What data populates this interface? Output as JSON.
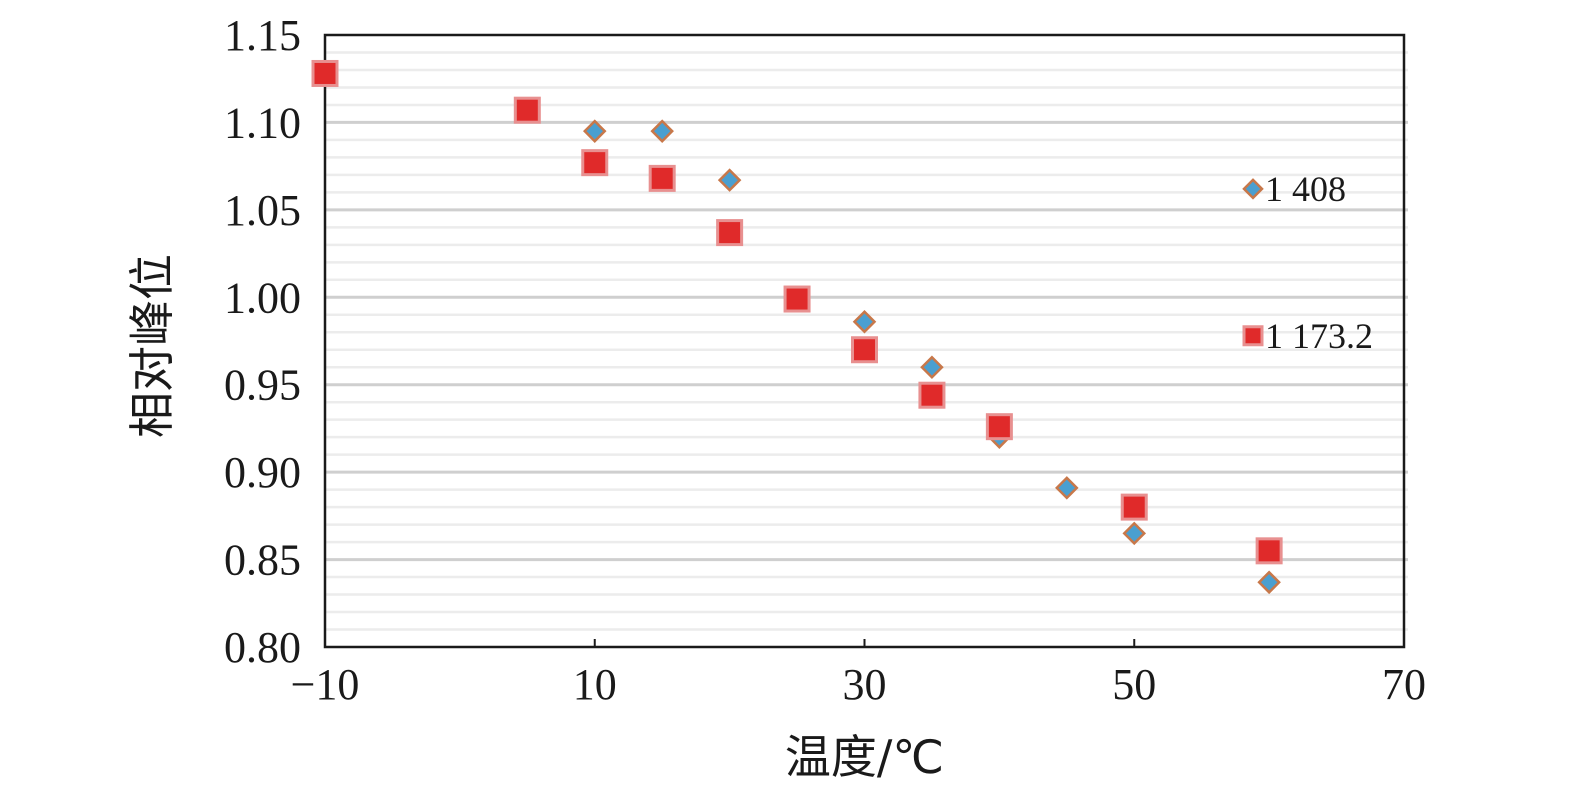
{
  "chart_data": {
    "type": "scatter",
    "title": "",
    "xlabel": "温度/℃",
    "ylabel": "相对峰位",
    "xlim": [
      -10,
      70
    ],
    "ylim": [
      0.8,
      1.15
    ],
    "x_ticks": [
      -10,
      10,
      30,
      50,
      70
    ],
    "x_tick_labels": [
      "−10",
      "10",
      "30",
      "50",
      "70"
    ],
    "y_ticks": [
      0.8,
      0.85,
      0.9,
      0.95,
      1.0,
      1.05,
      1.1,
      1.15
    ],
    "y_tick_labels": [
      "0.80",
      "0.85",
      "0.90",
      "0.95",
      "1.00",
      "1.05",
      "1.10",
      "1.15"
    ],
    "grid": true,
    "legend_position": "right",
    "series": [
      {
        "name": "1 408",
        "marker": "diamond",
        "color": "#4a9fd0",
        "edge_color": "#c8784a",
        "points": [
          {
            "x": 10,
            "y": 1.095
          },
          {
            "x": 15,
            "y": 1.095
          },
          {
            "x": 20,
            "y": 1.067
          },
          {
            "x": 30,
            "y": 0.986
          },
          {
            "x": 35,
            "y": 0.96
          },
          {
            "x": 40,
            "y": 0.92
          },
          {
            "x": 45,
            "y": 0.891
          },
          {
            "x": 50,
            "y": 0.865
          },
          {
            "x": 60,
            "y": 0.837
          }
        ]
      },
      {
        "name": "1 173.2",
        "marker": "square",
        "color": "#e02a2a",
        "edge_color": "#e89090",
        "points": [
          {
            "x": -10,
            "y": 1.128
          },
          {
            "x": 5,
            "y": 1.107
          },
          {
            "x": 10,
            "y": 1.077
          },
          {
            "x": 15,
            "y": 1.068
          },
          {
            "x": 20,
            "y": 1.037
          },
          {
            "x": 25,
            "y": 0.999
          },
          {
            "x": 30,
            "y": 0.97
          },
          {
            "x": 35,
            "y": 0.944
          },
          {
            "x": 40,
            "y": 0.926
          },
          {
            "x": 50,
            "y": 0.88
          },
          {
            "x": 60,
            "y": 0.855
          }
        ]
      }
    ]
  }
}
